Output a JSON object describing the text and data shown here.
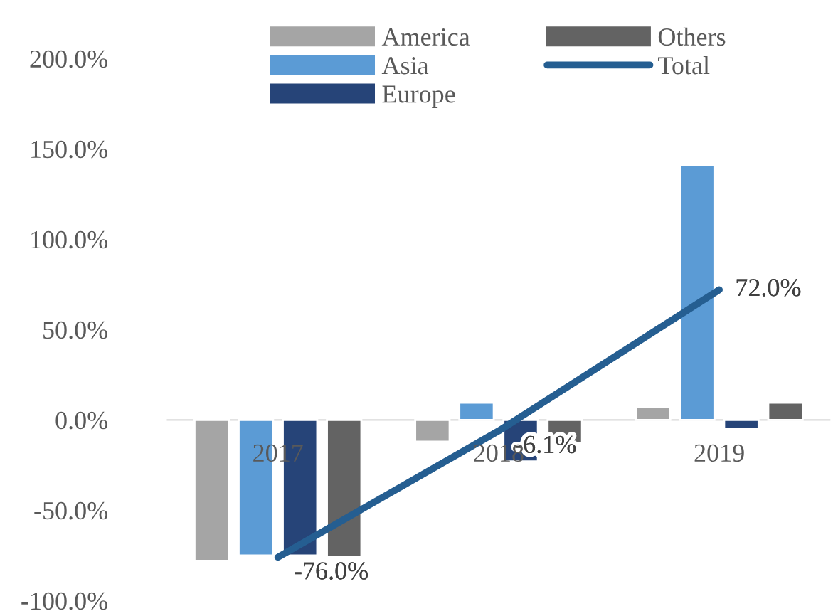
{
  "chart_data": {
    "type": "bar",
    "categories": [
      "2017",
      "2018",
      "2019"
    ],
    "series": [
      {
        "name": "America",
        "color": "#a5a5a5",
        "values": [
          -78,
          -12,
          7
        ]
      },
      {
        "name": "Asia",
        "color": "#5b9bd5",
        "values": [
          -75,
          9.5,
          141
        ]
      },
      {
        "name": "Europe",
        "color": "#264478",
        "values": [
          -75,
          -23,
          -5
        ]
      },
      {
        "name": "Others",
        "color": "#636363",
        "values": [
          -76,
          -13,
          9.5
        ]
      },
      {
        "name": "Total",
        "type": "line",
        "color": "#255e91",
        "values": [
          -76.0,
          -6.1,
          72.0
        ],
        "value_labels": [
          "-76.0%",
          "-6.1%",
          "72.0%"
        ]
      }
    ],
    "ylim": [
      -100,
      200
    ],
    "yticks": [
      {
        "value": -100,
        "label": "-100.0%"
      },
      {
        "value": -50,
        "label": "-50.0%"
      },
      {
        "value": 0,
        "label": "0.0%"
      },
      {
        "value": 50,
        "label": "50.0%"
      },
      {
        "value": 100,
        "label": "100.0%"
      },
      {
        "value": 150,
        "label": "150.0%"
      },
      {
        "value": 200,
        "label": "200.0%"
      }
    ],
    "grid": false,
    "legend": "top"
  }
}
